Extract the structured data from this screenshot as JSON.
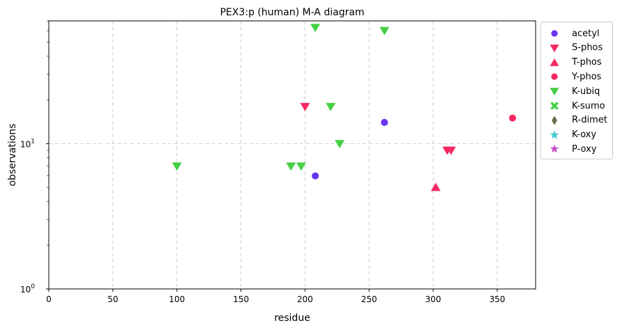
{
  "chart_data": {
    "type": "scatter",
    "title": "PEX3:p (human) M-A diagram",
    "xlabel": "residue",
    "ylabel": "observations",
    "xlim": [
      0,
      380
    ],
    "ylim": [
      1,
      70
    ],
    "yscale": "log",
    "x_ticks": [
      0,
      50,
      100,
      150,
      200,
      250,
      300,
      350
    ],
    "y_ticks": [
      {
        "value": 1,
        "base": "10",
        "exp": "0"
      },
      {
        "value": 10,
        "base": "10",
        "exp": "1"
      }
    ],
    "grid": true,
    "legend_position": "outside-right",
    "series": [
      {
        "name": "acetyl",
        "marker": "circle",
        "color": "#6a33f2",
        "points": [
          {
            "x": 208,
            "y": 6
          },
          {
            "x": 262,
            "y": 14
          }
        ]
      },
      {
        "name": "S-phos",
        "marker": "triangle-down",
        "color": "#f52a62",
        "points": [
          {
            "x": 200,
            "y": 18
          },
          {
            "x": 311,
            "y": 9
          },
          {
            "x": 314,
            "y": 9
          }
        ]
      },
      {
        "name": "T-phos",
        "marker": "triangle-up",
        "color": "#f52a62",
        "points": [
          {
            "x": 302,
            "y": 5
          }
        ]
      },
      {
        "name": "Y-phos",
        "marker": "circle",
        "color": "#f52a62",
        "points": [
          {
            "x": 362,
            "y": 15
          }
        ]
      },
      {
        "name": "K-ubiq",
        "marker": "triangle-down",
        "color": "#46d046",
        "points": [
          {
            "x": 100,
            "y": 7
          },
          {
            "x": 189,
            "y": 7
          },
          {
            "x": 197,
            "y": 7
          },
          {
            "x": 208,
            "y": 63
          },
          {
            "x": 220,
            "y": 18
          },
          {
            "x": 227,
            "y": 10
          },
          {
            "x": 262,
            "y": 60
          }
        ]
      },
      {
        "name": "K-sumo",
        "marker": "x-filled",
        "color": "#46d046",
        "points": []
      },
      {
        "name": "R-dimet",
        "marker": "diamond",
        "color": "#6b6b48",
        "points": []
      },
      {
        "name": "K-oxy",
        "marker": "star",
        "color": "#3fc8d2",
        "points": []
      },
      {
        "name": "P-oxy",
        "marker": "star",
        "color": "#c84fd0",
        "points": []
      }
    ]
  }
}
